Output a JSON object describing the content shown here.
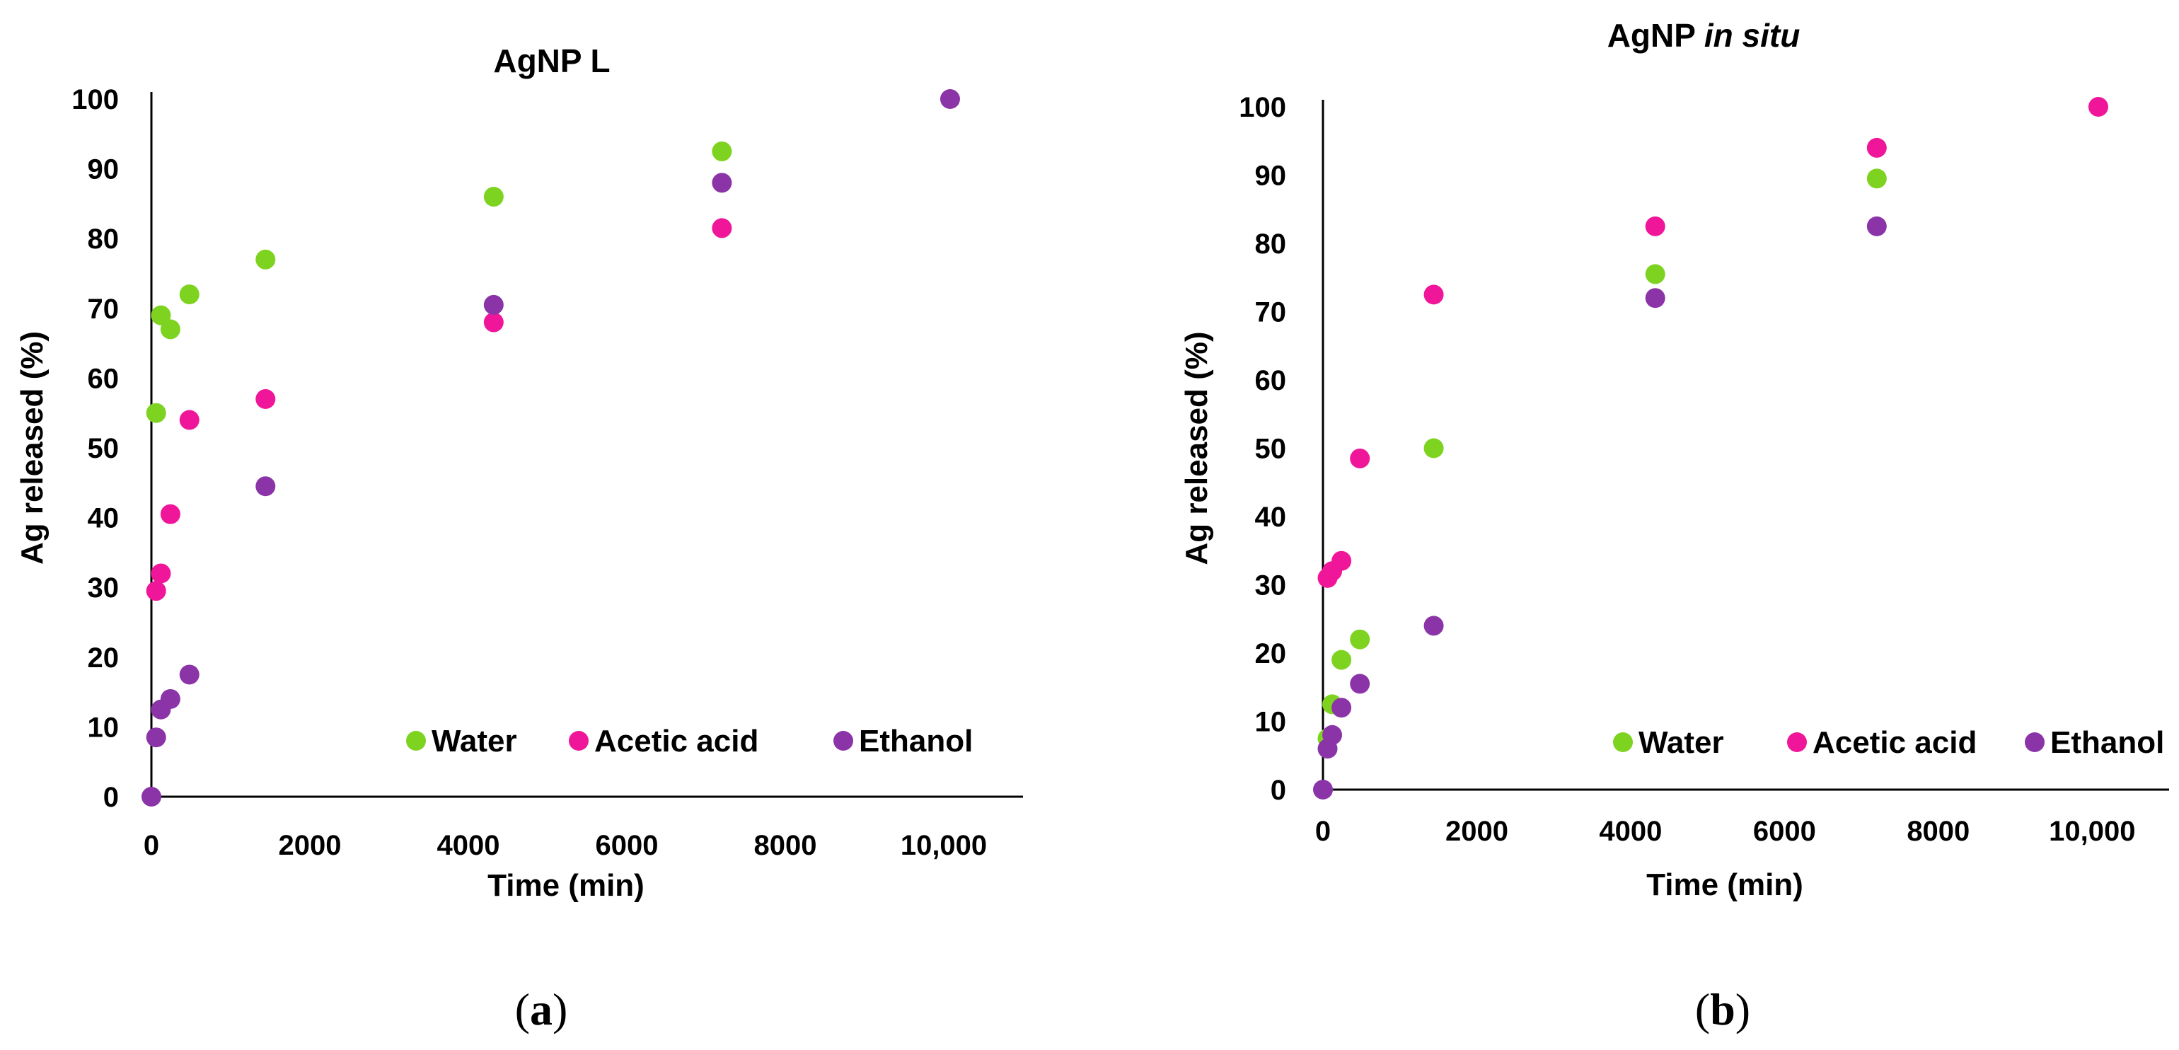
{
  "colors": {
    "Water": "#7ed321",
    "Acetic acid": "#f0169a",
    "Ethanol": "#8b34a8"
  },
  "chart_data": [
    {
      "type": "scatter",
      "title": "AgNP L",
      "title_parts": [
        {
          "text": "AgNP L",
          "italic": false
        }
      ],
      "xlabel": "Time (min)",
      "ylabel": "Ag released (%)",
      "xlim": [
        0,
        11000
      ],
      "ylim": [
        0,
        100
      ],
      "x_ticks": [
        0,
        2000,
        4000,
        6000,
        8000,
        10000
      ],
      "x_tick_labels": [
        "0",
        "2000",
        "4000",
        "6000",
        "8000",
        "10,000"
      ],
      "y_ticks": [
        0,
        10,
        20,
        30,
        40,
        50,
        60,
        70,
        80,
        90,
        100
      ],
      "y_tick_labels": [
        "0",
        "10",
        "20",
        "30",
        "40",
        "50",
        "60",
        "70",
        "80",
        "90",
        "100"
      ],
      "legend": "bottom-right",
      "caption": {
        "open": "(",
        "letter": "a",
        "close": ")"
      },
      "series": [
        {
          "name": "Water",
          "x": [
            60,
            120,
            240,
            480,
            1440,
            4320,
            7200
          ],
          "y": [
            55,
            69,
            67,
            72,
            77,
            86,
            92.5
          ]
        },
        {
          "name": "Acetic acid",
          "x": [
            60,
            120,
            240,
            480,
            1440,
            4320,
            7200
          ],
          "y": [
            29.5,
            32,
            40.5,
            54,
            57,
            68,
            81.5
          ]
        },
        {
          "name": "Ethanol",
          "x": [
            0,
            60,
            120,
            240,
            480,
            1440,
            4320,
            7200,
            10080
          ],
          "y": [
            0,
            8.5,
            12.5,
            14,
            17.5,
            44.5,
            70.5,
            88,
            100
          ]
        }
      ]
    },
    {
      "type": "scatter",
      "title": "AgNP in situ",
      "title_parts": [
        {
          "text": "AgNP ",
          "italic": false
        },
        {
          "text": "in situ",
          "italic": true
        }
      ],
      "xlabel": "Time (min)",
      "ylabel": "Ag released (%)",
      "xlim": [
        0,
        11000
      ],
      "ylim": [
        0,
        100
      ],
      "x_ticks": [
        0,
        2000,
        4000,
        6000,
        8000,
        10000
      ],
      "x_tick_labels": [
        "0",
        "2000",
        "4000",
        "6000",
        "8000",
        "10,000"
      ],
      "y_ticks": [
        0,
        10,
        20,
        30,
        40,
        50,
        60,
        70,
        80,
        90,
        100
      ],
      "y_tick_labels": [
        "0",
        "10",
        "20",
        "30",
        "40",
        "50",
        "60",
        "70",
        "80",
        "90",
        "100"
      ],
      "legend": "bottom-right",
      "caption": {
        "open": "(",
        "letter": "b",
        "close": ")"
      },
      "series": [
        {
          "name": "Water",
          "x": [
            60,
            120,
            240,
            480,
            1440,
            4320,
            7200
          ],
          "y": [
            7.5,
            12.5,
            19,
            22,
            50,
            75.5,
            89.5
          ]
        },
        {
          "name": "Acetic acid",
          "x": [
            60,
            120,
            240,
            480,
            1440,
            4320,
            7200,
            10080
          ],
          "y": [
            31,
            32,
            33.5,
            48.5,
            72.5,
            82.5,
            94,
            100
          ]
        },
        {
          "name": "Ethanol",
          "x": [
            0,
            60,
            120,
            240,
            480,
            1440,
            4320,
            7200
          ],
          "y": [
            0,
            6,
            8,
            12,
            15.5,
            24,
            72,
            82.5
          ]
        }
      ]
    }
  ]
}
